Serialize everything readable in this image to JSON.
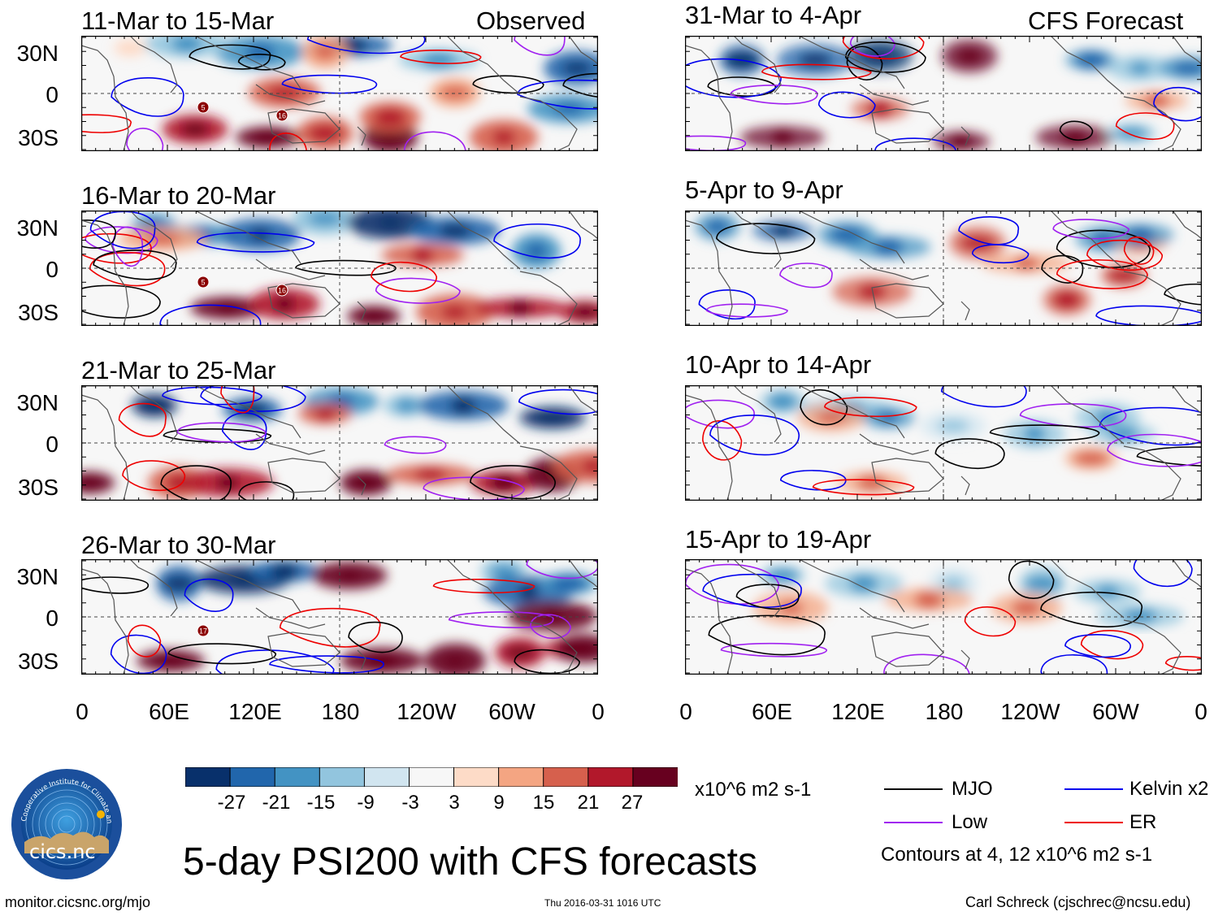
{
  "observed_label": "Observed",
  "forecast_label": "CFS Forecast",
  "panels_left": [
    {
      "title": "11-Mar to 15-Mar",
      "markers": [
        "5",
        "16"
      ]
    },
    {
      "title": "16-Mar to 20-Mar",
      "markers": [
        "5",
        "16"
      ]
    },
    {
      "title": "21-Mar to 25-Mar",
      "markers": []
    },
    {
      "title": "26-Mar to 30-Mar",
      "markers": [
        "17"
      ]
    }
  ],
  "panels_right": [
    {
      "title": "31-Mar to 4-Apr"
    },
    {
      "title": "5-Apr to 9-Apr"
    },
    {
      "title": "10-Apr to 14-Apr"
    },
    {
      "title": "15-Apr to 19-Apr"
    }
  ],
  "lat_labels": [
    "30N",
    "0",
    "30S"
  ],
  "lon_labels": [
    "0",
    "60E",
    "120E",
    "180",
    "120W",
    "60W",
    "0"
  ],
  "colorbar": {
    "colors": [
      "#08306b",
      "#2166ac",
      "#4393c3",
      "#92c5de",
      "#d1e5f0",
      "#f7f7f7",
      "#fddbc7",
      "#f4a582",
      "#d6604d",
      "#b2182b",
      "#67001f"
    ],
    "tick_labels": [
      "-27",
      "-21",
      "-15",
      "-9",
      "-3",
      "3",
      "9",
      "15",
      "21",
      "27"
    ],
    "units": "x10^6 m2 s-1"
  },
  "legend": {
    "items": [
      {
        "label": "MJO",
        "color": "#000000"
      },
      {
        "label": "Kelvin x2",
        "color": "#0000ee"
      },
      {
        "label": "Low",
        "color": "#a020f0"
      },
      {
        "label": "ER",
        "color": "#ee0000"
      }
    ],
    "note": "Contours at 4, 12 x10^6 m2 s-1"
  },
  "main_title": "5-day PSI200 with CFS forecasts",
  "logo_text": "cics.nc",
  "logo_ring_text": "Cooperative Institute for Climate and Satellites",
  "footer": {
    "url": "monitor.cicsnc.org/mjo",
    "timestamp": "Thu 2016-03-31 1016 UTC",
    "author": "Carl Schreck (cjschrec@ncsu.edu)"
  }
}
